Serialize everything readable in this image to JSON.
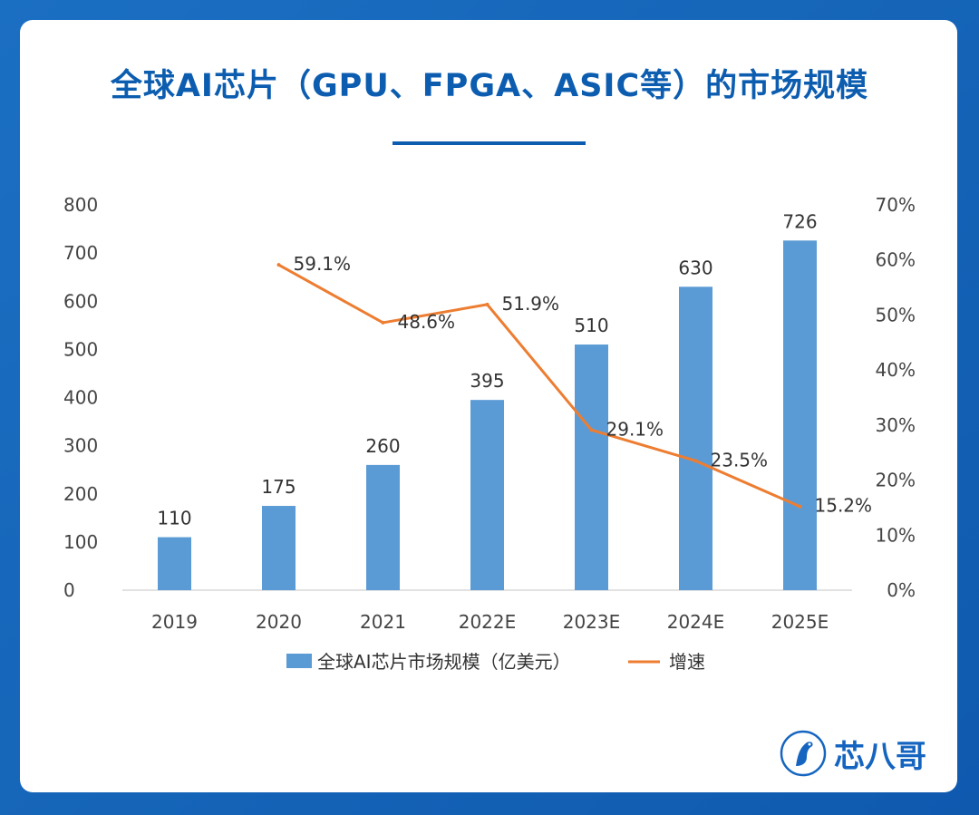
{
  "title": "全球AI芯片（GPU、FPGA、ASIC等）的市场规模",
  "brand": {
    "name": "芯八哥",
    "logo_icon": "bird-logo-icon"
  },
  "colors": {
    "bar": "#5b9bd5",
    "line": "#ed7d31",
    "title": "#0c5db0"
  },
  "chart_data": {
    "type": "bar+line",
    "categories": [
      "2019",
      "2020",
      "2021",
      "2022E",
      "2023E",
      "2024E",
      "2025E"
    ],
    "series": [
      {
        "name": "全球AI芯片市场规模（亿美元）",
        "type": "bar",
        "axis": "left",
        "values": [
          110,
          175,
          260,
          395,
          510,
          630,
          726
        ],
        "labels": [
          "110",
          "175",
          "260",
          "395",
          "510",
          "630",
          "726"
        ]
      },
      {
        "name": "增速",
        "type": "line",
        "axis": "right",
        "values": [
          null,
          59.1,
          48.6,
          51.9,
          29.1,
          23.5,
          15.2
        ],
        "labels": [
          "",
          "59.1%",
          "48.6%",
          "51.9%",
          "29.1%",
          "23.5%",
          "15.2%"
        ]
      }
    ],
    "left_axis": {
      "ylim": [
        0,
        800
      ],
      "ticks": [
        "0",
        "100",
        "200",
        "300",
        "400",
        "500",
        "600",
        "700",
        "800"
      ]
    },
    "right_axis": {
      "ylim": [
        0,
        70
      ],
      "ticks": [
        "0%",
        "10%",
        "20%",
        "30%",
        "40%",
        "50%",
        "60%",
        "70%"
      ]
    },
    "legend_position": "bottom",
    "grid": false
  }
}
